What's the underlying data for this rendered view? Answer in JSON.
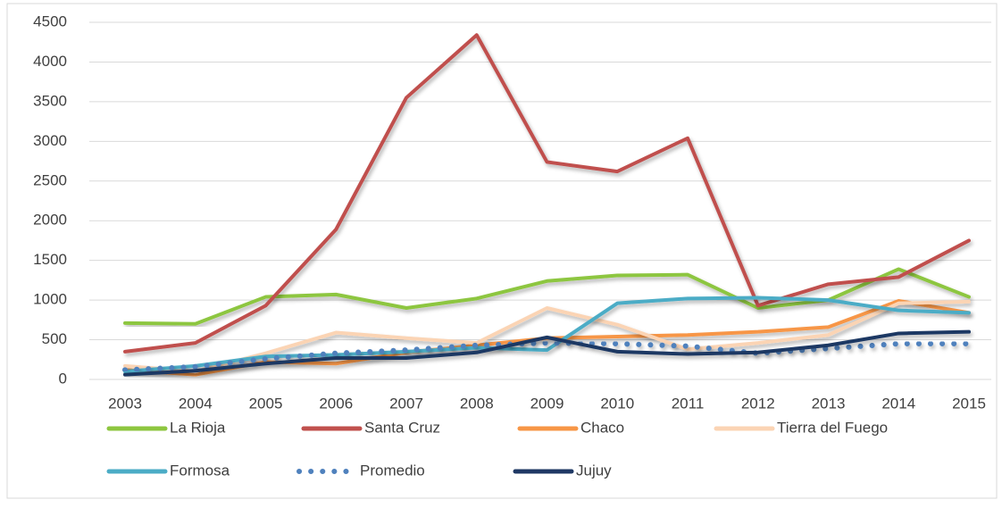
{
  "chart_data": {
    "type": "line",
    "x": [
      2003,
      2004,
      2005,
      2006,
      2007,
      2008,
      2009,
      2010,
      2011,
      2012,
      2013,
      2014,
      2015
    ],
    "xlim": [
      2003,
      2015
    ],
    "xticks": [
      2003,
      2004,
      2005,
      2006,
      2007,
      2008,
      2009,
      2010,
      2011,
      2012,
      2013,
      2014,
      2015
    ],
    "ylim": [
      0,
      4500
    ],
    "yticks": [
      0,
      500,
      1000,
      1500,
      2000,
      2500,
      3000,
      3500,
      4000,
      4500
    ],
    "grid": true,
    "legend": "bottom",
    "series": [
      {
        "name": "La Rioja",
        "color": "#8dc63f",
        "values": [
          710,
          700,
          1040,
          1070,
          900,
          1020,
          1240,
          1310,
          1320,
          900,
          1000,
          1390,
          1040
        ]
      },
      {
        "name": "Santa Cruz",
        "color": "#c0504d",
        "values": [
          350,
          460,
          930,
          1890,
          3550,
          4340,
          2740,
          2620,
          3040,
          930,
          1200,
          1290,
          1750
        ]
      },
      {
        "name": "Chaco",
        "color": "#f79646",
        "values": [
          120,
          60,
          220,
          200,
          340,
          430,
          520,
          540,
          560,
          600,
          660,
          990,
          840
        ]
      },
      {
        "name": "Tierra del Fuego",
        "color": "#fbd4b4",
        "values": [
          170,
          100,
          330,
          590,
          520,
          460,
          900,
          690,
          380,
          460,
          560,
          960,
          980
        ]
      },
      {
        "name": "Formosa",
        "color": "#4bacc6",
        "values": [
          100,
          170,
          290,
          310,
          350,
          400,
          370,
          960,
          1020,
          1030,
          1000,
          870,
          840
        ]
      },
      {
        "name": "Promedio",
        "color": "#4f81bd",
        "style": "dotted",
        "values": [
          120,
          160,
          260,
          330,
          370,
          430,
          460,
          450,
          420,
          330,
          390,
          450,
          450
        ]
      },
      {
        "name": "Jujuy",
        "color": "#1f3864",
        "values": [
          60,
          110,
          200,
          270,
          270,
          340,
          530,
          350,
          320,
          340,
          430,
          580,
          600
        ]
      }
    ]
  }
}
